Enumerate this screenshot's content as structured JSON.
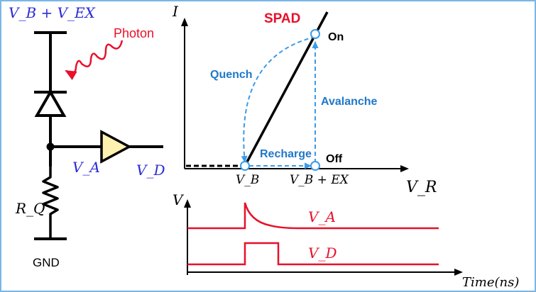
{
  "circuit": {
    "supply_label": "V_B + V_EX",
    "photon_label": "Photon",
    "node_a_label": "V_A",
    "node_d_label": "V_D",
    "resistor_label": "R_Q",
    "ground_label": "GND"
  },
  "iv_plot": {
    "title": "SPAD",
    "y_axis_label": "I",
    "x_axis_label": "V_R",
    "point_on_label": "On",
    "point_off_label": "Off",
    "quench_label": "Quench",
    "avalanche_label": "Avalanche",
    "recharge_label": "Recharge",
    "x_tick_vb": "V_B",
    "x_tick_vbex": "V_B + EX"
  },
  "timing_plot": {
    "y_axis_label": "V",
    "x_axis_label": "Time(ns)",
    "trace_a_label": "V_A",
    "trace_d_label": "V_D"
  },
  "colors": {
    "blue_text": "#2b2bd6",
    "process_blue": "#1f78c8",
    "red": "#e8102a",
    "buffer_fill": "#fff2b0",
    "frame": "#7ab6e6"
  }
}
